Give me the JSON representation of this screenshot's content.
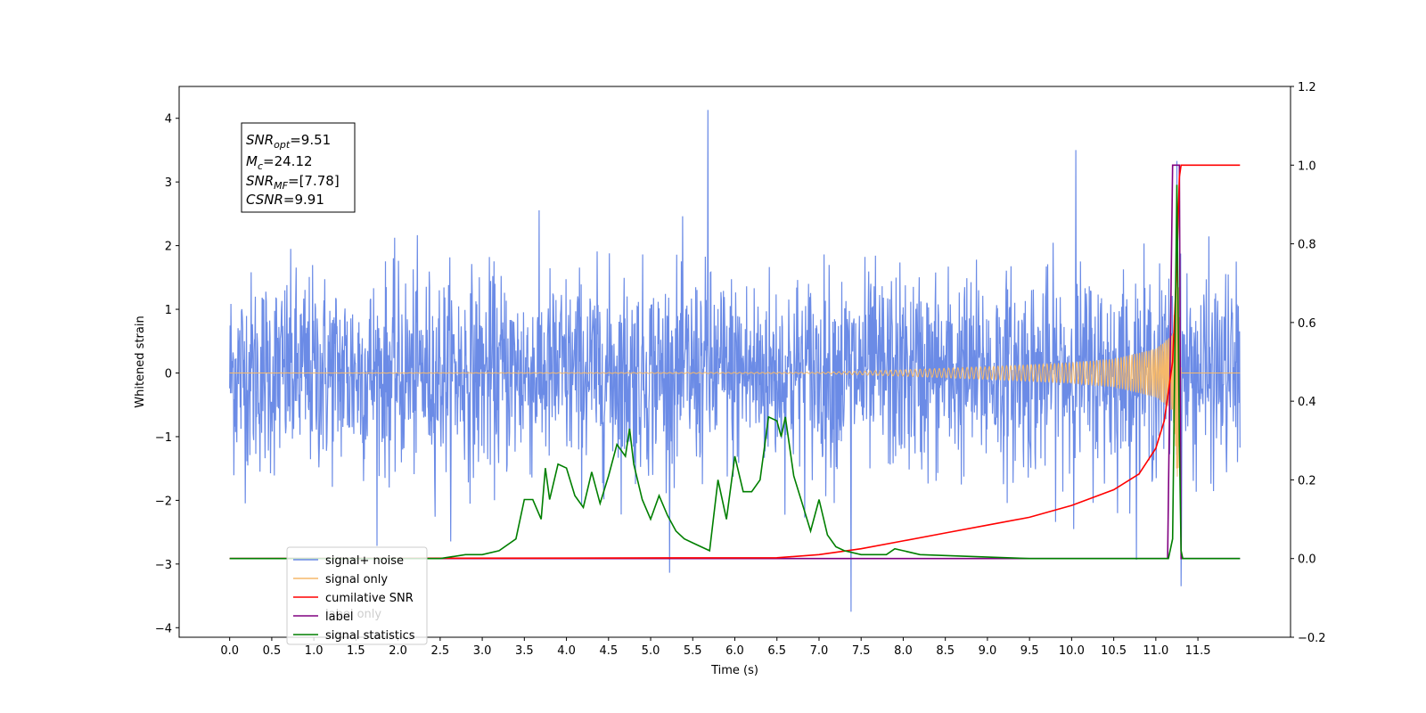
{
  "chart_data": {
    "type": "line",
    "xlabel": "Time (s)",
    "ylabel": "Whitened strain",
    "xlim": [
      -0.6,
      12.6
    ],
    "ylim": [
      -4.15,
      4.5
    ],
    "y2lim": [
      -0.2,
      1.2
    ],
    "x_ticks": [
      "0.0",
      "0.5",
      "1.0",
      "1.5",
      "2.0",
      "2.5",
      "3.0",
      "3.5",
      "4.0",
      "4.5",
      "5.0",
      "5.5",
      "6.0",
      "6.5",
      "7.0",
      "7.5",
      "8.0",
      "8.5",
      "9.0",
      "9.5",
      "10.0",
      "10.5",
      "11.0",
      "11.5"
    ],
    "y_ticks": [
      "4",
      "3",
      "2",
      "1",
      "0",
      "−1",
      "−2",
      "−3",
      "−4"
    ],
    "y2_ticks": [
      "1.2",
      "1.0",
      "0.8",
      "0.6",
      "0.4",
      "0.2",
      "0.0",
      "−0.2"
    ],
    "annotation": {
      "snr_opt": {
        "base": "SNR",
        "sub": "opt",
        "value": "=9.51"
      },
      "mc": {
        "base": "M",
        "sub": "c",
        "value": "=24.12"
      },
      "snr_mf": {
        "base": "SNR",
        "sub": "MF",
        "value": "=[7.78]"
      },
      "csnr": {
        "base": "CSNR",
        "value": "=9.91"
      }
    },
    "legend": {
      "placement": "lower-left",
      "entries": [
        "signal+ noise",
        "signal only",
        "cumilative SNR",
        "label",
        "signal statistics"
      ]
    },
    "hidden_legend_text": "label only",
    "colors": {
      "noise": "#6b8be6",
      "signal": "#f5b86a",
      "csnr": "#ff0000",
      "label": "#800080",
      "stats": "#007f00"
    },
    "series": [
      {
        "name": "signal+ noise",
        "axis": "left",
        "description_range": [
          -3.75,
          4.13
        ],
        "highlights": [
          [
            5.68,
            4.13
          ],
          [
            7.38,
            -3.75
          ],
          [
            10.05,
            3.5
          ],
          [
            11.25,
            3.33
          ],
          [
            11.3,
            -3.35
          ]
        ]
      },
      {
        "name": "signal only",
        "axis": "left",
        "x": [
          0,
          7.0,
          8.0,
          9.0,
          10.0,
          10.5,
          11.0,
          11.2,
          11.26,
          11.3,
          12.0
        ],
        "envelope": [
          0,
          0.01,
          0.05,
          0.1,
          0.16,
          0.22,
          0.38,
          0.6,
          1.8,
          0,
          0
        ]
      },
      {
        "name": "cumilative SNR",
        "axis": "right",
        "x": [
          0,
          6.5,
          7.0,
          7.5,
          8.0,
          8.5,
          9.0,
          9.5,
          10.0,
          10.5,
          10.8,
          11.0,
          11.1,
          11.2,
          11.25,
          11.28,
          11.3,
          12.0
        ],
        "y": [
          0,
          0.002,
          0.01,
          0.025,
          0.045,
          0.065,
          0.085,
          0.105,
          0.135,
          0.175,
          0.215,
          0.28,
          0.35,
          0.5,
          0.75,
          0.97,
          1.0,
          1.0
        ]
      },
      {
        "name": "label",
        "axis": "right",
        "x": [
          0,
          11.14,
          11.2,
          11.28,
          11.3,
          12.0
        ],
        "y": [
          0,
          0,
          1.0,
          1.0,
          0,
          0
        ]
      },
      {
        "name": "signal statistics",
        "axis": "right",
        "x": [
          0,
          2.5,
          2.8,
          3.0,
          3.2,
          3.4,
          3.5,
          3.6,
          3.7,
          3.75,
          3.8,
          3.9,
          4.0,
          4.1,
          4.2,
          4.3,
          4.4,
          4.5,
          4.6,
          4.7,
          4.75,
          4.8,
          4.9,
          5.0,
          5.1,
          5.2,
          5.3,
          5.4,
          5.5,
          5.6,
          5.7,
          5.8,
          5.9,
          6.0,
          6.1,
          6.2,
          6.3,
          6.4,
          6.5,
          6.55,
          6.6,
          6.7,
          6.8,
          6.9,
          7.0,
          7.1,
          7.2,
          7.3,
          7.5,
          7.8,
          7.9,
          8.0,
          8.2,
          9.5,
          10.0,
          11.0,
          11.15,
          11.2,
          11.25,
          11.28,
          11.3,
          11.32,
          11.4,
          12.0
        ],
        "y": [
          0,
          0,
          0.01,
          0.01,
          0.02,
          0.05,
          0.15,
          0.15,
          0.1,
          0.23,
          0.15,
          0.24,
          0.23,
          0.16,
          0.13,
          0.22,
          0.14,
          0.21,
          0.29,
          0.26,
          0.33,
          0.24,
          0.15,
          0.1,
          0.16,
          0.11,
          0.07,
          0.05,
          0.04,
          0.03,
          0.02,
          0.2,
          0.1,
          0.26,
          0.17,
          0.17,
          0.2,
          0.36,
          0.35,
          0.31,
          0.36,
          0.21,
          0.14,
          0.07,
          0.15,
          0.06,
          0.03,
          0.02,
          0.01,
          0.01,
          0.025,
          0.02,
          0.01,
          0.0,
          0.0,
          0.0,
          0.0,
          0.05,
          0.95,
          0.3,
          0.02,
          0.0,
          0.0,
          0.0
        ]
      }
    ]
  }
}
